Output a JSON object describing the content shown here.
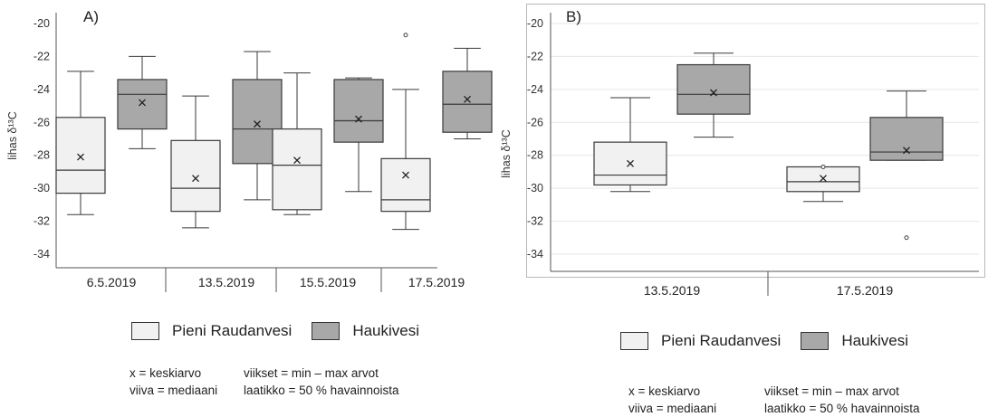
{
  "colors": {
    "pieni_raudanvesi": "#f1f1f1",
    "haukivesi": "#a8a8a8",
    "stroke": "#3a3a3a",
    "grid": "#e6e6e6",
    "page": "#ffffff"
  },
  "legend": {
    "entries": [
      "Pieni Raudanvesi",
      "Haukivesi"
    ]
  },
  "notes": {
    "mean": "x = keskiarvo",
    "median": "viiva = mediaani",
    "whiskers": "viikset = min – max arvot",
    "box": "laatikko = 50 % havainnoista"
  },
  "chart_data": [
    {
      "type": "boxplot",
      "panel_label": "A)",
      "ylabel": "lihas δ¹³C",
      "ylim": [
        -35,
        -20
      ],
      "yticks": [
        -20,
        -22,
        -24,
        -26,
        -28,
        -30,
        -32,
        -34
      ],
      "grid": false,
      "series": [
        "Pieni Raudanvesi",
        "Haukivesi"
      ],
      "categories": [
        "6.5.2019",
        "13.5.2019",
        "15.5.2019",
        "17.5.2019"
      ],
      "boxes": [
        {
          "category": "6.5.2019",
          "series": "Pieni Raudanvesi",
          "min": -31.6,
          "q1": -30.3,
          "median": -28.9,
          "q3": -25.7,
          "max": -22.9,
          "mean": -28.1,
          "outliers": []
        },
        {
          "category": "6.5.2019",
          "series": "Haukivesi",
          "min": -27.6,
          "q1": -26.4,
          "median": -24.3,
          "q3": -23.4,
          "max": -22.0,
          "mean": -24.8,
          "outliers": []
        },
        {
          "category": "13.5.2019",
          "series": "Pieni Raudanvesi",
          "min": -32.4,
          "q1": -31.4,
          "median": -30.0,
          "q3": -27.1,
          "max": -24.4,
          "mean": -29.4,
          "outliers": []
        },
        {
          "category": "13.5.2019",
          "series": "Haukivesi",
          "min": -30.7,
          "q1": -28.5,
          "median": -26.4,
          "q3": -23.4,
          "max": -21.7,
          "mean": -26.1,
          "outliers": []
        },
        {
          "category": "15.5.2019",
          "series": "Pieni Raudanvesi",
          "min": -31.6,
          "q1": -31.3,
          "median": -28.6,
          "q3": -26.4,
          "max": -23.0,
          "mean": -28.3,
          "outliers": []
        },
        {
          "category": "15.5.2019",
          "series": "Haukivesi",
          "min": -30.2,
          "q1": -27.2,
          "median": -25.9,
          "q3": -23.4,
          "max": -23.3,
          "mean": -25.8,
          "outliers": []
        },
        {
          "category": "17.5.2019",
          "series": "Pieni Raudanvesi",
          "min": -32.5,
          "q1": -31.4,
          "median": -30.7,
          "q3": -28.2,
          "max": -24.0,
          "mean": -29.2,
          "outliers": [
            -20.7
          ]
        },
        {
          "category": "17.5.2019",
          "series": "Haukivesi",
          "min": -27.0,
          "q1": -26.6,
          "median": -24.9,
          "q3": -22.9,
          "max": -21.5,
          "mean": -24.6,
          "outliers": []
        }
      ]
    },
    {
      "type": "boxplot",
      "panel_label": "B)",
      "ylabel": "lihas δ¹³C",
      "ylim": [
        -35,
        -20
      ],
      "yticks": [
        -20,
        -22,
        -24,
        -26,
        -28,
        -30,
        -32,
        -34
      ],
      "grid": true,
      "series": [
        "Pieni Raudanvesi",
        "Haukivesi"
      ],
      "categories": [
        "13.5.2019",
        "17.5.2019"
      ],
      "boxes": [
        {
          "category": "13.5.2019",
          "series": "Pieni Raudanvesi",
          "min": -30.2,
          "q1": -29.8,
          "median": -29.2,
          "q3": -27.2,
          "max": -24.5,
          "mean": -28.5,
          "outliers": []
        },
        {
          "category": "13.5.2019",
          "series": "Haukivesi",
          "min": -26.9,
          "q1": -25.5,
          "median": -24.3,
          "q3": -22.5,
          "max": -21.8,
          "mean": -24.2,
          "outliers": []
        },
        {
          "category": "17.5.2019",
          "series": "Pieni Raudanvesi",
          "min": -30.8,
          "q1": -30.2,
          "median": -29.6,
          "q3": -28.7,
          "max": -28.7,
          "mean": -29.4,
          "outliers": [
            -28.7
          ]
        },
        {
          "category": "17.5.2019",
          "series": "Haukivesi",
          "min": -28.3,
          "q1": -28.3,
          "median": -27.8,
          "q3": -25.7,
          "max": -24.1,
          "mean": -27.7,
          "outliers": [
            -33.0
          ]
        }
      ]
    }
  ]
}
